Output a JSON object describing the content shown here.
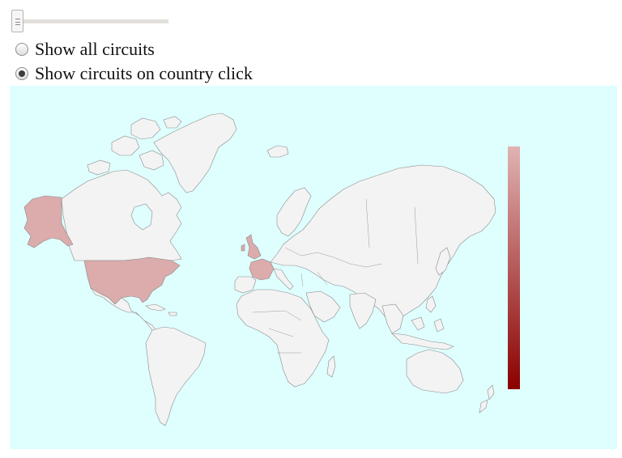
{
  "controls": {
    "slider_value": 0,
    "radio_options": [
      {
        "label": "Show all circuits",
        "checked": false
      },
      {
        "label": "Show circuits on country click",
        "checked": true
      }
    ]
  },
  "map": {
    "ocean_color": "#dfffff",
    "land_color": "#f3f3f3",
    "border_color": "#8a8a8a",
    "highlight_color": "#dcabab",
    "highlighted_countries": [
      "United States",
      "Alaska",
      "United Kingdom",
      "France"
    ]
  },
  "legend": {
    "gradient_start": "#e0b3b3",
    "gradient_end": "#8b0000"
  }
}
